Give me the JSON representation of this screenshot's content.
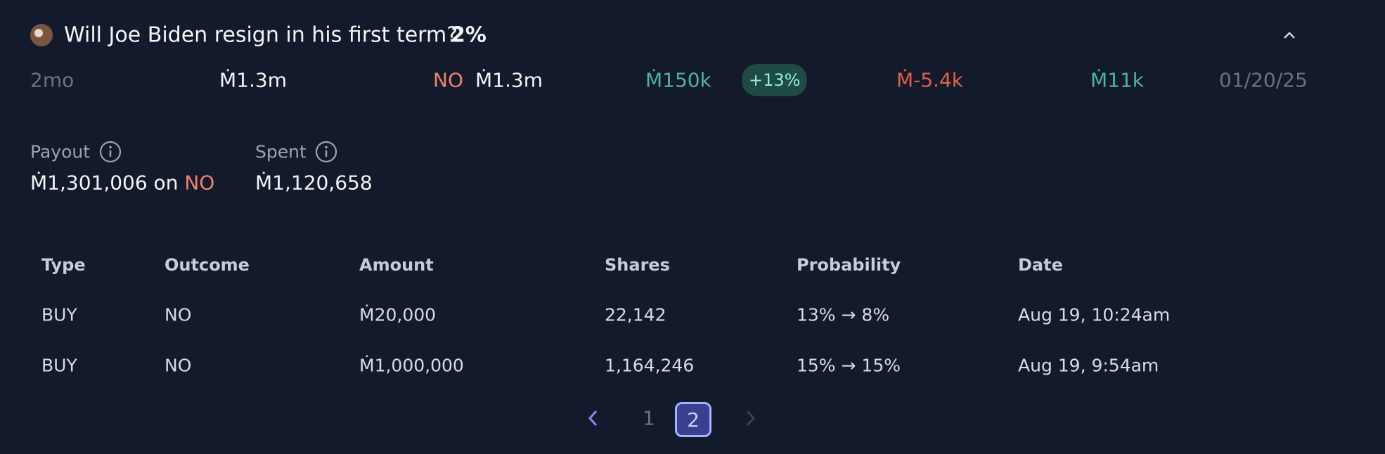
{
  "header": {
    "title": "Will Joe Biden resign in his first term?",
    "probability": "2%"
  },
  "stats": {
    "age": "2mo",
    "volume": "Ṁ1.3m",
    "position_outcome": "NO",
    "position_value": "Ṁ1.3m",
    "profit": "Ṁ150k",
    "profit_percent": "+13%",
    "daily_change": "Ṁ-5.4k",
    "loan": "Ṁ11k",
    "close_date": "01/20/25"
  },
  "summary": {
    "payout_label": "Payout",
    "payout_value": "Ṁ1,301,006 on",
    "payout_outcome": "NO",
    "spent_label": "Spent",
    "spent_value": "Ṁ1,120,658"
  },
  "table": {
    "headers": [
      "Type",
      "Outcome",
      "Amount",
      "Shares",
      "Probability",
      "Date"
    ],
    "rows": [
      [
        "BUY",
        "NO",
        "Ṁ20,000",
        "22,142",
        "13% → 8%",
        "Aug 19, 10:24am"
      ],
      [
        "BUY",
        "NO",
        "Ṁ1,000,000",
        "1,164,246",
        "15% → 15%",
        "Aug 19, 9:54am"
      ]
    ]
  },
  "pagination": {
    "pages": [
      "1",
      "2"
    ]
  }
}
